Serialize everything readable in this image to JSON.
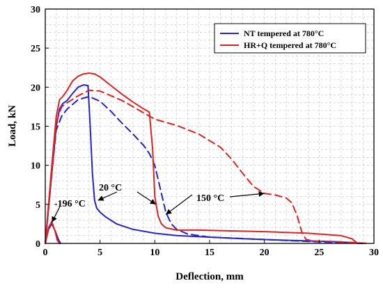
{
  "chart_data": {
    "type": "line",
    "xlabel": "Deflection, mm",
    "ylabel": "Load, kN",
    "xlim": [
      0,
      30
    ],
    "ylim": [
      0,
      30
    ],
    "xticks": [
      "0",
      "5",
      "10",
      "15",
      "20",
      "25",
      "30"
    ],
    "yticks": [
      "0",
      "5",
      "10",
      "15",
      "20",
      "25",
      "30"
    ],
    "grid": true,
    "legend_position": "top-right",
    "colors": {
      "nt": "#2222cc",
      "hrq": "#dd2222"
    },
    "series": [
      {
        "name": "NT tempered at 780°C",
        "color": "#2222cc",
        "curves": [
          {
            "temperature": "20 °C",
            "dashed": false,
            "x": [
              0,
              0.6,
              1.0,
              1.3,
              1.6,
              2.0,
              2.5,
              3.0,
              3.5,
              3.9,
              4.1,
              4.3,
              4.5,
              4.7,
              5.0,
              5.5,
              6.5,
              8,
              10,
              12,
              15,
              18,
              22,
              26,
              28,
              29
            ],
            "y": [
              0,
              9,
              15,
              17.2,
              17.9,
              18.3,
              19.2,
              20.0,
              20.3,
              20.2,
              15,
              9,
              5.5,
              4.5,
              4.0,
              3.4,
              2.5,
              1.8,
              1.3,
              1.0,
              0.8,
              0.6,
              0.4,
              0.25,
              0.1,
              0.0
            ]
          },
          {
            "temperature": "150 °C",
            "dashed": true,
            "x": [
              0,
              0.6,
              1.0,
              1.5,
              2.0,
              3.0,
              4.0,
              5.0,
              6.0,
              7.0,
              8.0,
              9.0,
              9.5,
              10.0,
              10.5,
              11.0,
              11.5,
              12.0,
              13,
              15,
              20,
              25,
              29
            ],
            "y": [
              0,
              9,
              14.5,
              16.3,
              17.2,
              18.4,
              18.8,
              18.2,
              16.9,
              15.4,
              14.0,
              12.5,
              11.5,
              10.0,
              7.0,
              4.0,
              2.5,
              1.8,
              1.2,
              0.8,
              0.5,
              0.2,
              0.0
            ]
          },
          {
            "temperature": "-196 °C",
            "dashed": false,
            "x": [
              0,
              0.3,
              0.6,
              0.9,
              1.2,
              1.4
            ],
            "y": [
              0,
              1.8,
              2.5,
              1.6,
              0.5,
              0.0
            ]
          }
        ]
      },
      {
        "name": "HR+Q tempered at 780°C",
        "color": "#dd2222",
        "curves": [
          {
            "temperature": "20 °C",
            "dashed": false,
            "x": [
              0,
              0.6,
              1.0,
              1.3,
              1.6,
              2.0,
              2.5,
              3.0,
              3.5,
              4.0,
              4.5,
              5.0,
              6.0,
              7.0,
              8.0,
              9.0,
              9.5,
              9.8,
              10.0,
              10.3,
              10.6,
              11.0,
              12,
              14,
              17,
              20,
              24,
              27,
              28,
              28.5
            ],
            "y": [
              0,
              10,
              16.2,
              18.4,
              18.8,
              19.6,
              20.8,
              21.4,
              21.7,
              21.8,
              21.7,
              21.3,
              20.2,
              19.1,
              18.1,
              17.2,
              16.8,
              12,
              6,
              3.5,
              2.5,
              2.0,
              1.7,
              1.7,
              1.6,
              1.5,
              1.3,
              1.0,
              0.6,
              0.0
            ]
          },
          {
            "temperature": "150 °C",
            "dashed": true,
            "x": [
              0,
              0.6,
              1.0,
              1.5,
              2.0,
              3.0,
              4.0,
              5.0,
              6.0,
              7.0,
              8.0,
              9.0,
              10.0,
              12.0,
              14.0,
              16.0,
              17.0,
              18.0,
              19.0,
              20.0,
              21.0,
              22.0,
              22.5,
              23.0,
              23.4,
              23.8,
              24.5,
              27,
              29.5
            ],
            "y": [
              0,
              9,
              15.5,
              17.5,
              18.0,
              18.9,
              19.6,
              19.5,
              18.9,
              18.3,
              17.5,
              16.7,
              15.9,
              15.1,
              14.0,
              12.3,
              10.8,
              9.0,
              7.3,
              6.4,
              6.2,
              5.8,
              5.2,
              3.5,
              1.5,
              0.5,
              0.3,
              0.2,
              0.0
            ]
          },
          {
            "temperature": "-196 °C",
            "dashed": false,
            "x": [
              0,
              0.3,
              0.6,
              0.9,
              1.1,
              1.3
            ],
            "y": [
              0,
              2.0,
              2.8,
              1.5,
              0.4,
              0.0
            ]
          }
        ]
      }
    ],
    "annotations": [
      {
        "text": "-196 °C",
        "target_x": 0.6,
        "target_y": 2.7
      },
      {
        "text": "20 °C",
        "target_x": 4.8,
        "target_y": 5.5
      },
      {
        "text": "20 °C",
        "target_x": 10.1,
        "target_y": 5.0
      },
      {
        "text": "150 °C",
        "target_x": 11.0,
        "target_y": 3.7
      },
      {
        "text": "150 °C",
        "target_x": 20.0,
        "target_y": 6.4
      }
    ]
  }
}
